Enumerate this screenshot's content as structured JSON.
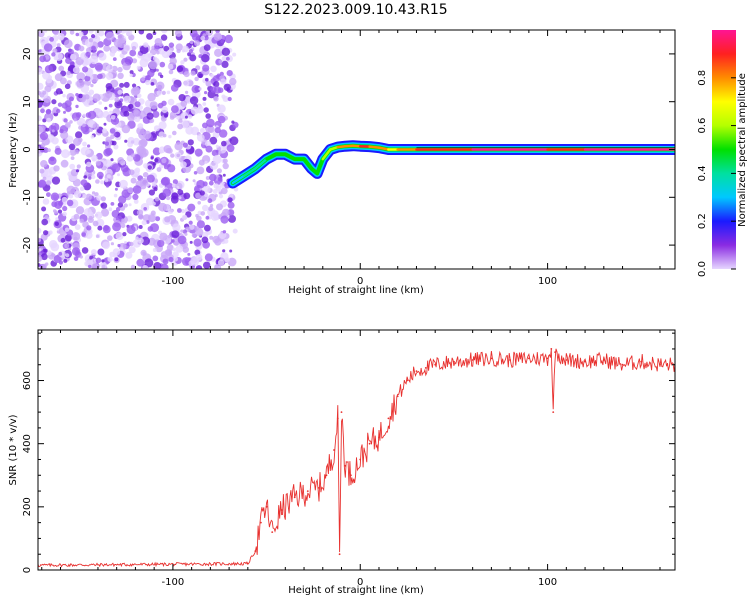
{
  "title": "S122.2023.009.10.43.R15",
  "colors": {
    "snr_line": "#e8312f",
    "spectrum_noise": "#7b2fe0",
    "axis": "#000000",
    "colorbar": [
      "#e6d6ff",
      "#8a2be2",
      "#1a1aff",
      "#00c8ff",
      "#00e0a0",
      "#00e000",
      "#b4ff00",
      "#ffff00",
      "#ff8c00",
      "#ff2020",
      "#ff1493"
    ]
  },
  "chart_data": [
    {
      "type": "heatmap",
      "xlabel": "Height of straight line (km)",
      "ylabel": "Frequency (Hz)",
      "xlim": [
        -172,
        168
      ],
      "ylim": [
        -25,
        25
      ],
      "xticks": [
        -100,
        0,
        100
      ],
      "xtick_labels": [
        "-100",
        "0",
        "100"
      ],
      "yticks": [
        -20,
        -10,
        0,
        10,
        20
      ],
      "ytick_labels": [
        "-20",
        "-10",
        "0",
        "10",
        "20"
      ],
      "noise_region_x": [
        -172,
        -68
      ],
      "ridge": {
        "x": [
          -68,
          -62,
          -56,
          -50,
          -45,
          -40,
          -35,
          -30,
          -26,
          -23,
          -20,
          -16,
          -12,
          -8,
          -4,
          0,
          5,
          10,
          15,
          20,
          30,
          40,
          60,
          80,
          100,
          120,
          140,
          168
        ],
        "freq": [
          -7,
          -5.5,
          -4,
          -2,
          -1,
          -1,
          -2,
          -2,
          -4,
          -5,
          -2,
          0,
          0.5,
          0.7,
          0.8,
          0.7,
          0.6,
          0.4,
          0,
          0,
          0,
          0,
          0,
          0,
          0,
          0,
          0,
          0
        ],
        "amplitude": [
          0.3,
          0.35,
          0.4,
          0.45,
          0.45,
          0.5,
          0.5,
          0.5,
          0.5,
          0.5,
          0.55,
          0.6,
          0.75,
          0.8,
          0.8,
          0.85,
          0.8,
          0.75,
          0.7,
          0.8,
          0.85,
          0.9,
          0.95,
          0.95,
          0.9,
          0.95,
          0.95,
          0.95
        ]
      },
      "colorbar": {
        "label": "Normalized spectral amplitude",
        "range": [
          0,
          1
        ],
        "ticks": [
          0.0,
          0.2,
          0.4,
          0.6,
          0.8
        ],
        "tick_labels": [
          "0.0",
          "0.2",
          "0.4",
          "0.6",
          "0.8"
        ]
      }
    },
    {
      "type": "line",
      "xlabel": "Height of straight line (km)",
      "ylabel": "SNR (10 * v/v)",
      "xlim": [
        -172,
        168
      ],
      "ylim": [
        0,
        760
      ],
      "xticks": [
        -100,
        0,
        100
      ],
      "xtick_labels": [
        "-100",
        "0",
        "100"
      ],
      "yticks": [
        0,
        200,
        400,
        600
      ],
      "ytick_labels": [
        "0",
        "200",
        "400",
        "600"
      ],
      "series": [
        {
          "x": [
            -172,
            -60,
            -56,
            -53,
            -50,
            -47,
            -42,
            -35,
            -28,
            -22,
            -18,
            -14,
            -12,
            -11,
            -10,
            -8,
            -5,
            0,
            5,
            10,
            15,
            20,
            25,
            30,
            35,
            40,
            50,
            60,
            70,
            80,
            90,
            100,
            102,
            103,
            104,
            110,
            120,
            130,
            140,
            150,
            160,
            168
          ],
          "y": [
            15,
            20,
            60,
            150,
            200,
            120,
            190,
            230,
            250,
            260,
            300,
            380,
            480,
            50,
            500,
            330,
            300,
            350,
            400,
            420,
            480,
            550,
            600,
            630,
            640,
            650,
            660,
            665,
            670,
            665,
            670,
            670,
            700,
            500,
            690,
            665,
            660,
            665,
            650,
            660,
            650,
            650
          ]
        }
      ]
    }
  ]
}
